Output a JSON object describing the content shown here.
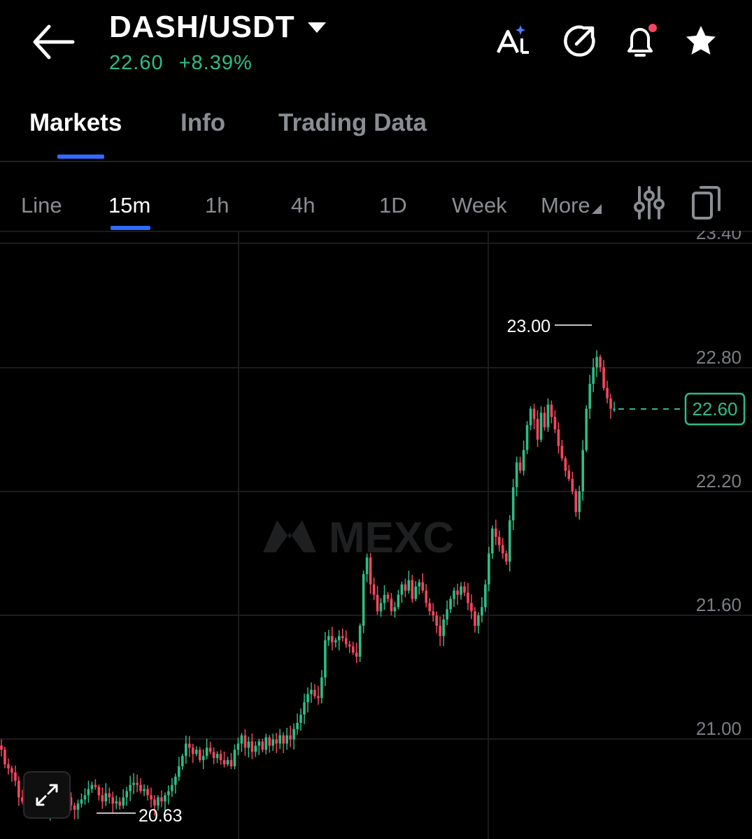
{
  "header": {
    "pair": "DASH/USDT",
    "price": "22.60",
    "change": "+8.39%",
    "icons": [
      "back-arrow-icon",
      "ai-icon",
      "share-icon",
      "bell-icon",
      "star-icon"
    ]
  },
  "tabs": [
    {
      "label": "Markets",
      "active": true
    },
    {
      "label": "Info",
      "active": false
    },
    {
      "label": "Trading Data",
      "active": false
    }
  ],
  "timeframes": [
    "Line",
    "15m",
    "1h",
    "4h",
    "1D",
    "Week",
    "More"
  ],
  "active_timeframe": "15m",
  "colors": {
    "up": "#2ebd85",
    "down": "#f6465d",
    "accent": "#2f6bff"
  },
  "chart_data": {
    "type": "candlestick",
    "y_axis_labels": [
      "23.40",
      "22.80",
      "22.20",
      "21.60",
      "21.00"
    ],
    "ylim": [
      20.4,
      23.4
    ],
    "high_label": "23.00",
    "low_label": "20.63",
    "current_price_label": "22.60",
    "watermark": "MEXC",
    "series": {
      "values": [
        20.95,
        20.88,
        20.86,
        20.84,
        20.8,
        20.72,
        20.7,
        20.75,
        20.72,
        20.78,
        20.74,
        20.68,
        20.66,
        20.64,
        20.7,
        20.74,
        20.7,
        20.72,
        20.74,
        20.72,
        20.68,
        20.66,
        20.69,
        20.71,
        20.73,
        20.76,
        20.78,
        20.77,
        20.73,
        20.7,
        20.74,
        20.72,
        20.69,
        20.7,
        20.68,
        20.72,
        20.75,
        20.78,
        20.79,
        20.78,
        20.75,
        20.76,
        20.73,
        20.71,
        20.68,
        20.72,
        20.7,
        20.73,
        20.75,
        20.78,
        20.82,
        20.87,
        20.92,
        20.98,
        20.96,
        20.93,
        20.95,
        20.9,
        20.92,
        20.96,
        20.94,
        20.91,
        20.93,
        20.9,
        20.88,
        20.9,
        20.87,
        20.95,
        20.98,
        21.02,
        20.96,
        20.99,
        20.94,
        20.97,
        20.99,
        20.95,
        21.01,
        20.97,
        21.0,
        20.98,
        21.02,
        20.98,
        21.02,
        21.0,
        21.05,
        21.08,
        21.12,
        21.18,
        21.22,
        21.24,
        21.21,
        21.2,
        21.3,
        21.48,
        21.5,
        21.47,
        21.48,
        21.5,
        21.49,
        21.46,
        21.45,
        21.42,
        21.4,
        21.55,
        21.8,
        21.88,
        21.75,
        21.7,
        21.62,
        21.66,
        21.7,
        21.68,
        21.62,
        21.64,
        21.7,
        21.75,
        21.72,
        21.77,
        21.68,
        21.74,
        21.76,
        21.72,
        21.66,
        21.62,
        21.6,
        21.55,
        21.5,
        21.58,
        21.63,
        21.68,
        21.72,
        21.7,
        21.74,
        21.71,
        21.66,
        21.62,
        21.55,
        21.6,
        21.64,
        21.75,
        21.9,
        22.02,
        21.98,
        21.94,
        21.9,
        21.86,
        22.06,
        22.22,
        22.34,
        22.3,
        22.4,
        22.52,
        22.6,
        22.55,
        22.45,
        22.58,
        22.51,
        22.62,
        22.56,
        22.5,
        22.42,
        22.36,
        22.3,
        22.26,
        22.2,
        22.1,
        22.2,
        22.4,
        22.6,
        22.72,
        22.8,
        22.85,
        22.8,
        22.7,
        22.65,
        22.6,
        22.6
      ]
    }
  }
}
